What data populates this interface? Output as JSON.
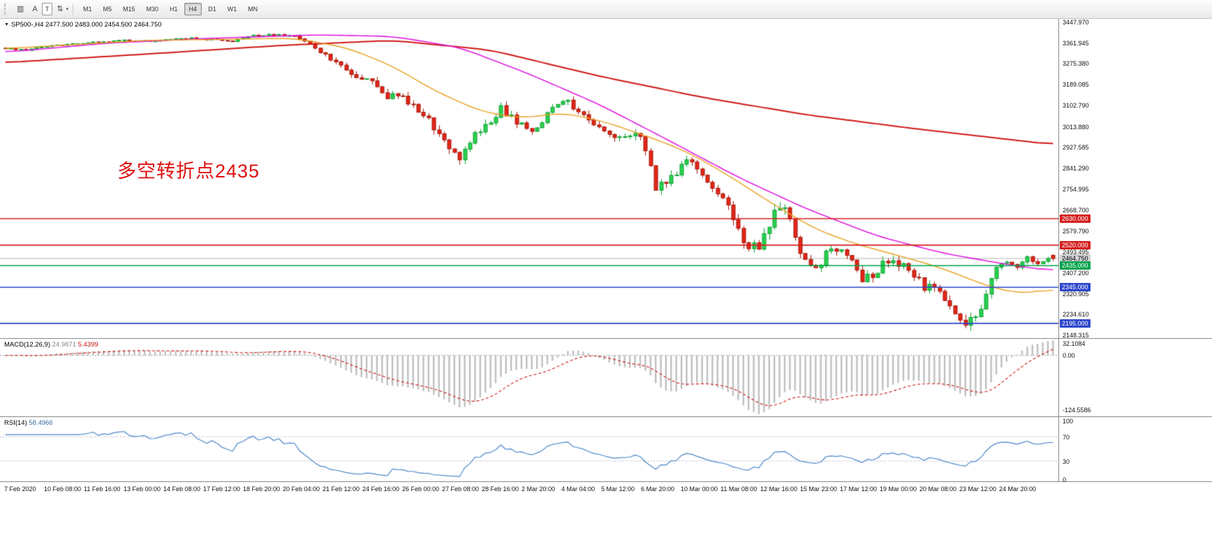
{
  "toolbar": {
    "icons": [
      {
        "name": "chart-window-icon",
        "glyph": "▥"
      },
      {
        "name": "cursor-tool-icon",
        "glyph": "A"
      },
      {
        "name": "text-label-tool-icon",
        "glyph": "T"
      },
      {
        "name": "cycle-symbols-icon",
        "glyph": "⇅"
      },
      {
        "name": "cycle-symbols-caret-icon",
        "glyph": "▾"
      }
    ],
    "timeframes": [
      {
        "label": "M1",
        "active": false
      },
      {
        "label": "M5",
        "active": false
      },
      {
        "label": "M15",
        "active": false
      },
      {
        "label": "M30",
        "active": false
      },
      {
        "label": "H1",
        "active": false
      },
      {
        "label": "H4",
        "active": true
      },
      {
        "label": "D1",
        "active": false
      },
      {
        "label": "W1",
        "active": false
      },
      {
        "label": "MN",
        "active": false
      }
    ]
  },
  "chart": {
    "header_symbol": "SP500-,H4",
    "header_ohlc": "2477.500 2483.000 2454.500 2464.750",
    "annotation": "多空转折点2435",
    "price_axis_labels": [
      "3447.970",
      "3361.945",
      "3275.380",
      "3189.085",
      "3102.790",
      "3013.880",
      "2927.585",
      "2841.290",
      "2754.995",
      "2668.700",
      "2579.790",
      "2493.495",
      "2407.200",
      "2320.905",
      "2234.610",
      "2148.315"
    ],
    "price_tags": [
      {
        "label": "2630.000",
        "price": 2630.0,
        "bg": "#d42020",
        "fg": "#ffffff"
      },
      {
        "label": "2520.000",
        "price": 2520.0,
        "bg": "#d42020",
        "fg": "#ffffff"
      },
      {
        "label": "2464.750",
        "price": 2464.75,
        "bg": "#d2d2d2",
        "fg": "#000000"
      },
      {
        "label": "2435.000",
        "price": 2435.0,
        "bg": "#00a24c",
        "fg": "#ffffff"
      },
      {
        "label": "2345.000",
        "price": 2345.0,
        "bg": "#2c46cc",
        "fg": "#ffffff"
      },
      {
        "label": "2195.000",
        "price": 2195.0,
        "bg": "#2c46cc",
        "fg": "#ffffff"
      }
    ]
  },
  "macd_panel": {
    "label": "MACD(12,26,9)",
    "value_main": "24.9871",
    "value_signal": "5.4399",
    "axis_labels": [
      "32.1084",
      "0.00",
      "-124.5586"
    ]
  },
  "rsi_panel": {
    "label": "RSI(14)",
    "value": "58.4966",
    "axis_labels": [
      "100",
      "70",
      "30",
      "0"
    ]
  },
  "time_axis": [
    "7 Feb 2020",
    "10 Feb 08:00",
    "11 Feb 16:00",
    "13 Feb 00:00",
    "14 Feb 08:00",
    "17 Feb 12:00",
    "18 Feb 20:00",
    "20 Feb 04:00",
    "21 Feb 12:00",
    "24 Feb 16:00",
    "26 Feb 00:00",
    "27 Feb 08:00",
    "28 Feb 16:00",
    "2 Mar 20:00",
    "4 Mar 04:00",
    "5 Mar 12:00",
    "6 Mar 20:00",
    "10 Mar 00:00",
    "11 Mar 08:00",
    "12 Mar 16:00",
    "15 Mar 23:00",
    "17 Mar 12:00",
    "19 Mar 00:00",
    "20 Mar 08:00",
    "23 Mar 12:00",
    "24 Mar 20:00"
  ],
  "colors": {
    "up": "#2bd14f",
    "up_border": "#0ba132",
    "down": "#e22718",
    "down_border": "#a81408",
    "current_price_line": "#b4b4b4",
    "macd_hist": "#bfbfbf",
    "macd_signal": "#cc1111",
    "rsi_line": "#4a86c8",
    "level_dotted": "#b8b8d0",
    "zero_dotted": "#999999"
  },
  "chart_data": {
    "type": "candlestick",
    "symbol": "SP500-",
    "timeframe": "H4",
    "ohlc_display": {
      "open": 2477.5,
      "high": 2483.0,
      "low": 2454.5,
      "close": 2464.75
    },
    "current_price": 2464.75,
    "num_candles": 204,
    "y_axis": {
      "min": 2148.315,
      "max": 3447.97
    },
    "close_waypoints": [
      [
        0,
        3337
      ],
      [
        4,
        3330
      ],
      [
        8,
        3347
      ],
      [
        12,
        3352
      ],
      [
        16,
        3360
      ],
      [
        20,
        3366
      ],
      [
        24,
        3371
      ],
      [
        28,
        3368
      ],
      [
        32,
        3377
      ],
      [
        36,
        3380
      ],
      [
        40,
        3374
      ],
      [
        44,
        3368
      ],
      [
        48,
        3390
      ],
      [
        52,
        3394
      ],
      [
        56,
        3386
      ],
      [
        60,
        3340
      ],
      [
        63,
        3298
      ],
      [
        66,
        3246
      ],
      [
        70,
        3206
      ],
      [
        74,
        3142
      ],
      [
        78,
        3118
      ],
      [
        82,
        3032
      ],
      [
        86,
        2938
      ],
      [
        88,
        2882
      ],
      [
        90,
        2948
      ],
      [
        93,
        3012
      ],
      [
        96,
        3086
      ],
      [
        99,
        3036
      ],
      [
        102,
        2996
      ],
      [
        105,
        3064
      ],
      [
        108,
        3126
      ],
      [
        111,
        3076
      ],
      [
        114,
        3024
      ],
      [
        117,
        2986
      ],
      [
        120,
        2964
      ],
      [
        122,
        2996
      ],
      [
        124,
        2922
      ],
      [
        126,
        2754
      ],
      [
        129,
        2792
      ],
      [
        132,
        2876
      ],
      [
        135,
        2806
      ],
      [
        138,
        2744
      ],
      [
        140,
        2682
      ],
      [
        142,
        2592
      ],
      [
        144,
        2498
      ],
      [
        146,
        2526
      ],
      [
        148,
        2610
      ],
      [
        150,
        2676
      ],
      [
        152,
        2642
      ],
      [
        154,
        2502
      ],
      [
        156,
        2428
      ],
      [
        158,
        2456
      ],
      [
        160,
        2504
      ],
      [
        162,
        2512
      ],
      [
        164,
        2450
      ],
      [
        166,
        2382
      ],
      [
        168,
        2402
      ],
      [
        170,
        2438
      ],
      [
        172,
        2452
      ],
      [
        174,
        2440
      ],
      [
        176,
        2394
      ],
      [
        178,
        2348
      ],
      [
        180,
        2334
      ],
      [
        182,
        2292
      ],
      [
        184,
        2248
      ],
      [
        186,
        2206
      ],
      [
        188,
        2224
      ],
      [
        190,
        2312
      ],
      [
        192,
        2418
      ],
      [
        194,
        2446
      ],
      [
        196,
        2432
      ],
      [
        198,
        2466
      ],
      [
        200,
        2446
      ],
      [
        202,
        2460
      ],
      [
        203,
        2464.75
      ]
    ],
    "volatility_waypoints": [
      [
        0,
        7
      ],
      [
        40,
        7
      ],
      [
        56,
        10
      ],
      [
        60,
        24
      ],
      [
        70,
        30
      ],
      [
        82,
        38
      ],
      [
        88,
        48
      ],
      [
        96,
        34
      ],
      [
        108,
        30
      ],
      [
        120,
        34
      ],
      [
        124,
        44
      ],
      [
        126,
        54
      ],
      [
        132,
        38
      ],
      [
        140,
        46
      ],
      [
        144,
        54
      ],
      [
        150,
        50
      ],
      [
        156,
        46
      ],
      [
        162,
        38
      ],
      [
        168,
        42
      ],
      [
        176,
        36
      ],
      [
        182,
        40
      ],
      [
        186,
        44
      ],
      [
        190,
        40
      ],
      [
        194,
        34
      ],
      [
        198,
        26
      ],
      [
        203,
        20
      ]
    ],
    "moving_averages": [
      {
        "name": "ma-slow",
        "color": "#d01818",
        "width": 2.0,
        "points": [
          [
            0,
            3278
          ],
          [
            27,
            3313
          ],
          [
            54,
            3350
          ],
          [
            75,
            3370
          ],
          [
            94,
            3330
          ],
          [
            115,
            3222
          ],
          [
            135,
            3134
          ],
          [
            155,
            3062
          ],
          [
            176,
            3004
          ],
          [
            196,
            2955
          ],
          [
            203,
            2938
          ]
        ]
      },
      {
        "name": "ma-medium",
        "color": "#e020e0",
        "width": 1.6,
        "points": [
          [
            0,
            3321
          ],
          [
            20,
            3359
          ],
          [
            40,
            3379
          ],
          [
            60,
            3393
          ],
          [
            75,
            3387
          ],
          [
            88,
            3341
          ],
          [
            101,
            3235
          ],
          [
            115,
            3105
          ],
          [
            128,
            2961
          ],
          [
            142,
            2802
          ],
          [
            155,
            2673
          ],
          [
            169,
            2557
          ],
          [
            182,
            2485
          ],
          [
            196,
            2433
          ],
          [
            203,
            2414
          ]
        ]
      },
      {
        "name": "ma-fast",
        "color": "#e8a020",
        "width": 1.4,
        "points": [
          [
            0,
            3336
          ],
          [
            27,
            3370
          ],
          [
            56,
            3379
          ],
          [
            66,
            3341
          ],
          [
            75,
            3264
          ],
          [
            83,
            3163
          ],
          [
            92,
            3076
          ],
          [
            100,
            3047
          ],
          [
            108,
            3070
          ],
          [
            116,
            3033
          ],
          [
            124,
            2975
          ],
          [
            132,
            2909
          ],
          [
            140,
            2811
          ],
          [
            149,
            2687
          ],
          [
            157,
            2586
          ],
          [
            165,
            2523
          ],
          [
            173,
            2477
          ],
          [
            181,
            2428
          ],
          [
            189,
            2361
          ],
          [
            194,
            2327
          ],
          [
            200,
            2321
          ],
          [
            203,
            2345
          ]
        ]
      }
    ],
    "horizontal_levels": [
      {
        "price": 2630.0,
        "color": "#d42020",
        "width": 1.6
      },
      {
        "price": 2520.0,
        "color": "#d42020",
        "width": 1.6
      },
      {
        "price": 2435.0,
        "color": "#00a24c",
        "width": 1.6
      },
      {
        "price": 2345.0,
        "color": "#2c46cc",
        "width": 1.6
      },
      {
        "price": 2195.0,
        "color": "#2c46cc",
        "width": 1.8
      }
    ],
    "indicators": [
      {
        "name": "MACD",
        "params": [
          12,
          26,
          9
        ],
        "current": [
          24.9871,
          5.4399
        ],
        "range": [
          -124.5586,
          32.1084
        ]
      },
      {
        "name": "RSI",
        "params": [
          14
        ],
        "current": 58.4966,
        "range": [
          0,
          100
        ],
        "levels": [
          70,
          30
        ]
      }
    ]
  }
}
